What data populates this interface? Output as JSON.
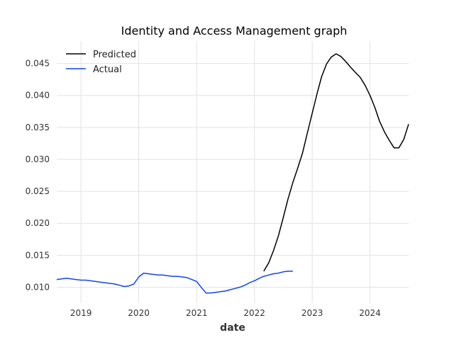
{
  "chart_data": {
    "type": "line",
    "title": "Identity and Access Management graph",
    "xlabel": "date",
    "ylabel": "",
    "x_ticks": [
      "2019",
      "2020",
      "2021",
      "2022",
      "2023",
      "2024"
    ],
    "y_ticks": [
      "0.010",
      "0.015",
      "0.020",
      "0.025",
      "0.030",
      "0.035",
      "0.040",
      "0.045"
    ],
    "xlim": [
      "2018-08-01",
      "2024-09-01"
    ],
    "ylim": [
      0.0075,
      0.0485
    ],
    "grid": true,
    "legend_position": "top-left",
    "series": [
      {
        "name": "Predicted",
        "color": "#000000",
        "points": [
          [
            "2022-03-01",
            0.0125
          ],
          [
            "2022-04-01",
            0.0138
          ],
          [
            "2022-05-01",
            0.0157
          ],
          [
            "2022-06-01",
            0.018
          ],
          [
            "2022-07-01",
            0.0208
          ],
          [
            "2022-08-01",
            0.0238
          ],
          [
            "2022-09-01",
            0.0264
          ],
          [
            "2022-10-01",
            0.0286
          ],
          [
            "2022-11-01",
            0.031
          ],
          [
            "2022-12-01",
            0.0341
          ],
          [
            "2023-01-01",
            0.0372
          ],
          [
            "2023-02-01",
            0.0403
          ],
          [
            "2023-03-01",
            0.0429
          ],
          [
            "2023-04-01",
            0.0449
          ],
          [
            "2023-05-01",
            0.046
          ],
          [
            "2023-06-01",
            0.0465
          ],
          [
            "2023-07-01",
            0.0461
          ],
          [
            "2023-08-01",
            0.0453
          ],
          [
            "2023-09-01",
            0.0444
          ],
          [
            "2023-10-01",
            0.0436
          ],
          [
            "2023-11-01",
            0.0428
          ],
          [
            "2023-12-01",
            0.0416
          ],
          [
            "2024-01-01",
            0.04
          ],
          [
            "2024-02-01",
            0.0381
          ],
          [
            "2024-03-01",
            0.036
          ],
          [
            "2024-04-01",
            0.0343
          ],
          [
            "2024-05-01",
            0.033
          ],
          [
            "2024-06-01",
            0.0318
          ],
          [
            "2024-07-01",
            0.0318
          ],
          [
            "2024-08-01",
            0.0331
          ],
          [
            "2024-09-01",
            0.0355
          ]
        ]
      },
      {
        "name": "Actual",
        "color": "#1144ee",
        "points": [
          [
            "2018-08-01",
            0.0112
          ],
          [
            "2018-09-01",
            0.0113
          ],
          [
            "2018-10-01",
            0.0114
          ],
          [
            "2018-11-01",
            0.0113
          ],
          [
            "2018-12-01",
            0.0112
          ],
          [
            "2019-01-01",
            0.0111
          ],
          [
            "2019-02-01",
            0.0111
          ],
          [
            "2019-03-01",
            0.011
          ],
          [
            "2019-04-01",
            0.0109
          ],
          [
            "2019-05-01",
            0.0108
          ],
          [
            "2019-06-01",
            0.0107
          ],
          [
            "2019-07-01",
            0.0106
          ],
          [
            "2019-08-01",
            0.0105
          ],
          [
            "2019-09-01",
            0.0103
          ],
          [
            "2019-10-01",
            0.0101
          ],
          [
            "2019-11-01",
            0.0102
          ],
          [
            "2019-12-01",
            0.0105
          ],
          [
            "2020-01-01",
            0.0116
          ],
          [
            "2020-02-01",
            0.0122
          ],
          [
            "2020-03-01",
            0.0121
          ],
          [
            "2020-04-01",
            0.012
          ],
          [
            "2020-05-01",
            0.0119
          ],
          [
            "2020-06-01",
            0.0119
          ],
          [
            "2020-07-01",
            0.0118
          ],
          [
            "2020-08-01",
            0.0117
          ],
          [
            "2020-09-01",
            0.0117
          ],
          [
            "2020-10-01",
            0.0116
          ],
          [
            "2020-11-01",
            0.0115
          ],
          [
            "2020-12-01",
            0.0112
          ],
          [
            "2021-01-01",
            0.0109
          ],
          [
            "2021-02-01",
            0.0099
          ],
          [
            "2021-03-01",
            0.0091
          ],
          [
            "2021-04-01",
            0.0091
          ],
          [
            "2021-05-01",
            0.0092
          ],
          [
            "2021-06-01",
            0.0093
          ],
          [
            "2021-07-01",
            0.0094
          ],
          [
            "2021-08-01",
            0.0096
          ],
          [
            "2021-09-01",
            0.0098
          ],
          [
            "2021-10-01",
            0.01
          ],
          [
            "2021-11-01",
            0.0103
          ],
          [
            "2021-12-01",
            0.0107
          ],
          [
            "2022-01-01",
            0.011
          ],
          [
            "2022-02-01",
            0.0114
          ],
          [
            "2022-03-01",
            0.0117
          ],
          [
            "2022-04-01",
            0.0119
          ],
          [
            "2022-05-01",
            0.0121
          ],
          [
            "2022-06-01",
            0.0122
          ],
          [
            "2022-07-01",
            0.0124
          ],
          [
            "2022-08-01",
            0.0125
          ],
          [
            "2022-09-01",
            0.0125
          ]
        ]
      }
    ]
  }
}
